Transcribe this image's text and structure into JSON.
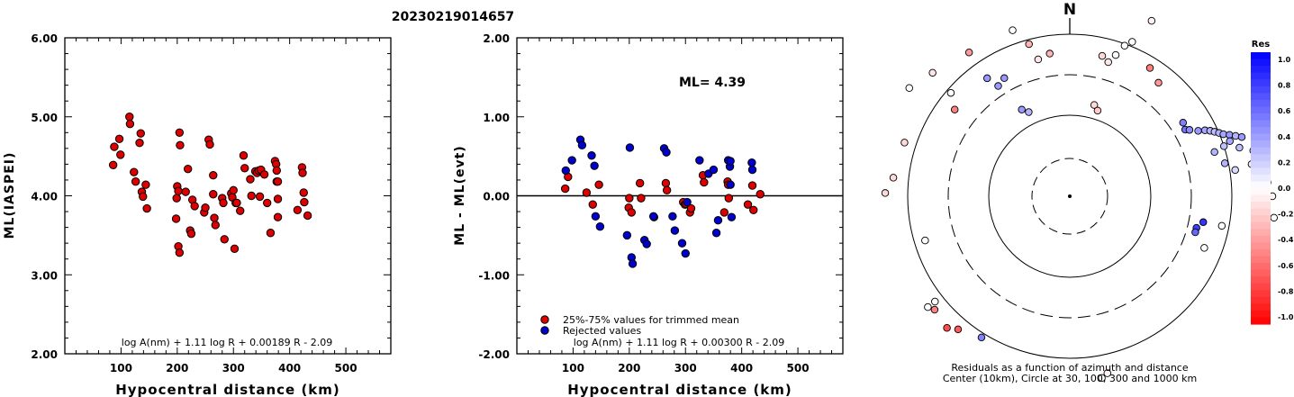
{
  "title": "20230219014657",
  "chart_data": [
    {
      "type": "scatter",
      "ylabel": "ML(IASPEI)",
      "xlabel": "Hypocentral distance (km)",
      "xticks": [
        "100",
        "200",
        "300",
        "400",
        "500"
      ],
      "yticks": [
        "2.00",
        "3.00",
        "4.00",
        "5.00",
        "6.00"
      ],
      "xlim": [
        0,
        580
      ],
      "ylim": [
        2.0,
        6.0
      ],
      "formula": "log A(nm) + 1.11 log R + 0.00189 R - 2.09",
      "point_color": "#dd0000",
      "x": [
        86,
        88,
        97,
        99,
        115,
        116,
        123,
        126,
        133,
        135,
        137,
        139,
        144,
        146,
        198,
        199,
        200,
        202,
        202,
        204,
        204,
        205,
        215,
        219,
        223,
        225,
        227,
        231,
        248,
        250,
        256,
        258,
        264,
        264,
        266,
        268,
        280,
        282,
        284,
        296,
        298,
        300,
        302,
        304,
        306,
        312,
        318,
        320,
        330,
        332,
        339,
        342,
        345,
        347,
        349,
        355,
        360,
        366,
        374,
        376,
        377,
        377,
        379,
        379,
        379,
        414,
        422,
        423,
        425,
        426,
        432
      ],
      "y": [
        4.39,
        4.62,
        4.72,
        4.52,
        5.0,
        4.91,
        4.3,
        4.18,
        4.67,
        4.79,
        4.05,
        3.99,
        4.14,
        3.84,
        3.71,
        3.97,
        4.12,
        4.06,
        3.36,
        3.28,
        4.8,
        4.64,
        4.05,
        4.34,
        3.56,
        3.52,
        3.95,
        3.87,
        3.79,
        3.85,
        4.71,
        4.65,
        4.02,
        4.26,
        3.72,
        3.63,
        3.97,
        3.91,
        3.45,
        4.03,
        3.98,
        4.07,
        3.33,
        3.91,
        3.91,
        3.81,
        4.51,
        4.35,
        4.21,
        4.0,
        4.31,
        4.29,
        4.32,
        3.99,
        4.33,
        4.27,
        3.91,
        3.53,
        4.44,
        4.4,
        4.32,
        4.18,
        4.18,
        3.96,
        3.73,
        3.82,
        4.36,
        4.29,
        4.04,
        3.92,
        3.75
      ]
    },
    {
      "type": "scatter",
      "ylabel": "ML - ML(evt)",
      "xlabel": "Hypocentral distance (km)",
      "xticks": [
        "100",
        "200",
        "300",
        "400",
        "500"
      ],
      "yticks": [
        "-2.00",
        "-1.00",
        "0.00",
        "1.00",
        "2.00"
      ],
      "xlim": [
        0,
        580
      ],
      "ylim": [
        -2.0,
        2.0
      ],
      "annotation": "ML= 4.39",
      "formula": "log A(nm) + 1.11 log R + 0.00300 R - 2.09",
      "legend": [
        "25%-75% values for trimmed mean",
        "Rejected values"
      ],
      "colors": {
        "accepted": "#dd0000",
        "rejected": "#0000cc"
      },
      "series": [
        {
          "name": "25%-75% values for trimmed mean",
          "x": [
            86,
            91,
            124,
            135,
            146,
            199,
            200,
            204,
            219,
            221,
            244,
            265,
            267,
            296,
            299,
            301,
            308,
            310,
            331,
            333,
            369,
            375,
            376,
            377,
            411,
            419,
            421,
            433
          ],
          "y": [
            0.09,
            0.24,
            0.04,
            -0.11,
            0.14,
            -0.15,
            -0.03,
            -0.21,
            0.16,
            -0.03,
            -0.27,
            0.16,
            0.07,
            -0.08,
            -0.11,
            -0.1,
            -0.21,
            -0.16,
            0.26,
            0.17,
            -0.21,
            0.18,
            0.14,
            -0.03,
            -0.11,
            0.13,
            -0.18,
            0.02
          ]
        },
        {
          "name": "Rejected values",
          "x": [
            87,
            98,
            113,
            116,
            133,
            138,
            140,
            148,
            196,
            201,
            204,
            206,
            227,
            231,
            243,
            262,
            266,
            277,
            281,
            294,
            300,
            303,
            325,
            341,
            350,
            355,
            358,
            376,
            379,
            380,
            380,
            382,
            418,
            419
          ],
          "y": [
            0.32,
            0.45,
            0.71,
            0.64,
            0.51,
            0.38,
            -0.26,
            -0.39,
            -0.5,
            0.61,
            -0.78,
            -0.86,
            -0.56,
            -0.61,
            -0.26,
            0.6,
            0.55,
            -0.26,
            -0.44,
            -0.6,
            -0.73,
            -0.08,
            0.45,
            0.28,
            0.33,
            -0.47,
            -0.31,
            0.45,
            0.37,
            0.44,
            0.14,
            -0.27,
            0.42,
            0.33
          ]
        }
      ]
    },
    {
      "type": "scatter",
      "subtype": "polar residual map",
      "north_label": "N",
      "caption_line1": "Residuals as a function of azimuth and distance",
      "caption_line2": "Center (10km), Circle at 30, 100, 300 and 1000 km",
      "colorbar_title": "Res",
      "colorbar_ticks": [
        "1.0",
        "0.8",
        "0.6",
        "0.4",
        "0.2",
        "0.0",
        "-0.2",
        "-0.4",
        "-0.6",
        "-0.8",
        "-1.0"
      ],
      "points_az_dist_res": [
        [
          13,
          160,
          -0.15
        ],
        [
          16,
          155,
          -0.1
        ],
        [
          18,
          165,
          0.0
        ],
        [
          20,
          178,
          0.0
        ],
        [
          22,
          185,
          0.0
        ],
        [
          25,
          215,
          -0.05
        ],
        [
          32,
          168,
          -0.5
        ],
        [
          38,
          160,
          -0.4
        ],
        [
          15,
          105,
          -0.15
        ],
        [
          18,
          100,
          -0.2
        ],
        [
          57,
          150,
          0.5
        ],
        [
          60,
          148,
          0.55
        ],
        [
          61,
          152,
          0.45
        ],
        [
          63,
          160,
          0.4
        ],
        [
          64,
          167,
          0.35
        ],
        [
          65,
          172,
          0.3
        ],
        [
          66,
          176,
          0.25
        ],
        [
          67,
          180,
          0.3
        ],
        [
          68,
          184,
          0.35
        ],
        [
          69,
          190,
          0.4
        ],
        [
          70,
          196,
          0.3
        ],
        [
          71,
          188,
          0.35
        ],
        [
          71,
          202,
          0.4
        ],
        [
          72,
          180,
          0.25
        ],
        [
          73,
          168,
          0.3
        ],
        [
          74,
          196,
          0.25
        ],
        [
          76,
          210,
          0.2
        ],
        [
          78,
          176,
          0.3
        ],
        [
          80,
          205,
          -0.1
        ],
        [
          81,
          186,
          0.15
        ],
        [
          86,
          220,
          0.05
        ],
        [
          90,
          225,
          -0.05
        ],
        [
          92,
          210,
          0.1
        ],
        [
          96,
          228,
          0.0
        ],
        [
          101,
          172,
          0.0
        ],
        [
          101,
          151,
          0.8
        ],
        [
          104,
          145,
          0.75
        ],
        [
          106,
          145,
          0.6
        ],
        [
          111,
          160,
          0.0
        ],
        [
          168,
          201,
          -0.05
        ],
        [
          170,
          205,
          0.0
        ],
        [
          212,
          185,
          0.5
        ],
        [
          220,
          193,
          -0.65
        ],
        [
          223,
          200,
          -0.7
        ],
        [
          230,
          196,
          -0.5
        ],
        [
          232,
          200,
          0.0
        ],
        [
          232,
          190,
          0.0
        ],
        [
          253,
          168,
          0.0
        ],
        [
          271,
          205,
          -0.15
        ],
        [
          276,
          197,
          -0.15
        ],
        [
          288,
          193,
          -0.15
        ],
        [
          304,
          215,
          0.0
        ],
        [
          307,
          160,
          -0.5
        ],
        [
          311,
          175,
          0.0
        ],
        [
          312,
          205,
          -0.1
        ],
        [
          325,
          195,
          -0.4
        ],
        [
          325,
          160,
          0.4
        ],
        [
          327,
          146,
          0.4
        ],
        [
          331,
          150,
          0.4
        ],
        [
          331,
          110,
          0.4
        ],
        [
          334,
          104,
          0.3
        ],
        [
          341,
          195,
          0.0
        ],
        [
          345,
          175,
          -0.3
        ],
        [
          347,
          156,
          -0.1
        ],
        [
          352,
          160,
          -0.3
        ]
      ]
    }
  ]
}
